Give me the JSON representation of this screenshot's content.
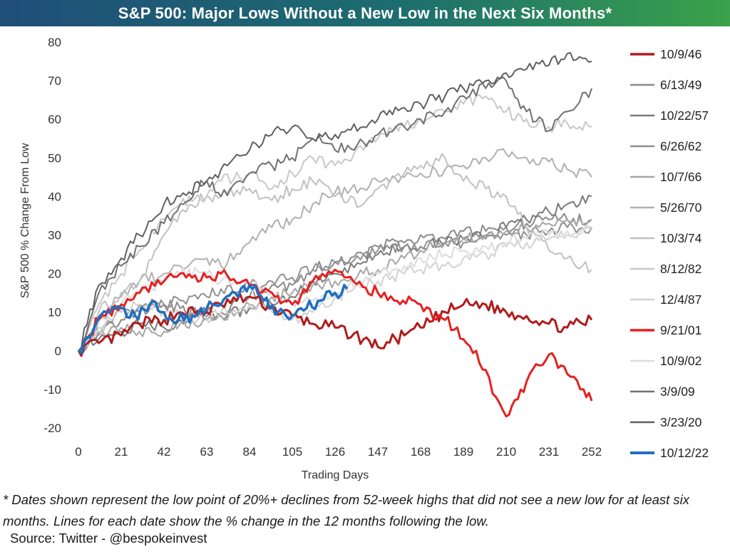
{
  "title": "S&P 500: Major Lows Without a New Low in the Next Six Months*",
  "footnote": "* Dates shown represent the low point of 20%+ declines from 52-week highs that did not see a new low for at least six months. Lines for each date show the % change in the 12 months following the low.",
  "source": "Source: Twitter - @bespokeinvest",
  "chart_data": {
    "type": "line",
    "xlabel": "Trading Days",
    "ylabel": "S&P 500 % Change From Low",
    "xlim": [
      0,
      252
    ],
    "ylim": [
      -20,
      80
    ],
    "x_ticks": [
      0,
      21,
      42,
      63,
      84,
      105,
      126,
      147,
      168,
      189,
      210,
      231,
      252
    ],
    "y_ticks": [
      -20,
      -10,
      0,
      10,
      20,
      30,
      40,
      50,
      60,
      70,
      80
    ],
    "grid": false,
    "legend_position": "right",
    "series": [
      {
        "name": "10/9/46",
        "color": "#b01c1c",
        "width": 3,
        "x": [
          0,
          10,
          21,
          30,
          42,
          50,
          63,
          70,
          84,
          95,
          105,
          115,
          126,
          140,
          147,
          160,
          168,
          180,
          189,
          200,
          210,
          220,
          231,
          240,
          252
        ],
        "values": [
          0,
          2,
          4,
          7,
          8,
          10,
          10,
          12,
          14,
          11,
          9,
          7,
          6,
          3,
          1,
          4,
          6,
          10,
          12,
          12,
          10,
          9,
          7,
          6,
          8
        ]
      },
      {
        "name": "6/13/49",
        "color": "#8a8a8a",
        "width": 2,
        "x": [
          0,
          10,
          21,
          30,
          42,
          50,
          63,
          70,
          84,
          95,
          105,
          115,
          126,
          140,
          147,
          160,
          168,
          180,
          189,
          200,
          210,
          220,
          231,
          240,
          252
        ],
        "values": [
          0,
          5,
          8,
          10,
          12,
          11,
          9,
          10,
          14,
          17,
          17,
          21,
          23,
          25,
          27,
          28,
          30,
          29,
          31,
          31,
          32,
          33,
          34,
          34,
          34
        ]
      },
      {
        "name": "10/22/57",
        "color": "#7a7a7a",
        "width": 2,
        "x": [
          0,
          10,
          21,
          30,
          42,
          50,
          63,
          70,
          84,
          95,
          105,
          115,
          126,
          140,
          147,
          160,
          168,
          180,
          189,
          200,
          210,
          220,
          231,
          240,
          252
        ],
        "values": [
          0,
          3,
          5,
          7,
          6,
          8,
          10,
          9,
          11,
          12,
          14,
          18,
          20,
          23,
          25,
          27,
          27,
          28,
          29,
          30,
          32,
          34,
          36,
          38,
          40
        ]
      },
      {
        "name": "6/26/62",
        "color": "#909090",
        "width": 2,
        "x": [
          0,
          10,
          21,
          30,
          42,
          50,
          63,
          70,
          84,
          95,
          105,
          115,
          126,
          140,
          147,
          160,
          168,
          180,
          189,
          200,
          210,
          220,
          231,
          240,
          252
        ],
        "values": [
          0,
          6,
          10,
          12,
          12,
          13,
          14,
          16,
          17,
          18,
          19,
          21,
          23,
          25,
          26,
          27,
          27,
          28,
          28,
          29,
          30,
          30,
          31,
          32,
          32
        ]
      },
      {
        "name": "10/7/66",
        "color": "#a6a6a6",
        "width": 2,
        "x": [
          0,
          10,
          21,
          30,
          42,
          50,
          63,
          70,
          84,
          95,
          105,
          115,
          126,
          140,
          147,
          160,
          168,
          180,
          189,
          200,
          210,
          220,
          231,
          240,
          252
        ],
        "values": [
          0,
          4,
          6,
          5,
          5,
          7,
          8,
          9,
          12,
          14,
          15,
          17,
          18,
          20,
          21,
          24,
          26,
          28,
          29,
          30,
          31,
          32,
          33,
          34,
          34
        ]
      },
      {
        "name": "5/26/70",
        "color": "#b0b0b0",
        "width": 2,
        "x": [
          0,
          10,
          21,
          30,
          42,
          50,
          63,
          70,
          84,
          95,
          105,
          115,
          126,
          140,
          147,
          160,
          168,
          180,
          189,
          200,
          210,
          220,
          231,
          240,
          252
        ],
        "values": [
          0,
          8,
          14,
          18,
          20,
          22,
          24,
          22,
          28,
          32,
          34,
          38,
          41,
          42,
          44,
          45,
          46,
          47,
          48,
          50,
          51,
          50,
          49,
          47,
          45
        ]
      },
      {
        "name": "10/3/74",
        "color": "#c0c0c0",
        "width": 2,
        "x": [
          0,
          10,
          21,
          30,
          42,
          50,
          63,
          70,
          84,
          95,
          105,
          115,
          126,
          140,
          147,
          160,
          168,
          180,
          189,
          200,
          210,
          220,
          231,
          240,
          252
        ],
        "values": [
          0,
          10,
          15,
          18,
          30,
          36,
          40,
          40,
          42,
          39,
          42,
          44,
          40,
          38,
          42,
          46,
          48,
          50,
          44,
          42,
          40,
          32,
          26,
          24,
          21
        ]
      },
      {
        "name": "8/12/82",
        "color": "#c8c8c8",
        "width": 2,
        "x": [
          0,
          10,
          21,
          30,
          42,
          50,
          63,
          70,
          84,
          95,
          105,
          115,
          126,
          140,
          147,
          160,
          168,
          180,
          189,
          200,
          210,
          220,
          231,
          240,
          252
        ],
        "values": [
          0,
          12,
          20,
          26,
          34,
          38,
          40,
          44,
          46,
          42,
          46,
          50,
          48,
          52,
          55,
          58,
          60,
          62,
          64,
          66,
          62,
          60,
          58,
          59,
          58
        ]
      },
      {
        "name": "12/4/87",
        "color": "#d2d2d2",
        "width": 2,
        "x": [
          0,
          10,
          21,
          30,
          42,
          50,
          63,
          70,
          84,
          95,
          105,
          115,
          126,
          140,
          147,
          160,
          168,
          180,
          189,
          200,
          210,
          220,
          231,
          240,
          252
        ],
        "values": [
          0,
          5,
          10,
          12,
          10,
          9,
          8,
          10,
          12,
          10,
          8,
          10,
          14,
          17,
          18,
          20,
          21,
          22,
          24,
          25,
          27,
          28,
          29,
          30,
          31
        ]
      },
      {
        "name": "9/21/01",
        "color": "#e62020",
        "width": 3,
        "x": [
          0,
          10,
          21,
          30,
          42,
          50,
          63,
          70,
          84,
          95,
          105,
          115,
          126,
          135,
          147,
          155,
          168,
          180,
          189,
          200,
          205,
          210,
          220,
          231,
          240,
          248,
          252
        ],
        "values": [
          0,
          8,
          12,
          15,
          18,
          20,
          19,
          20,
          17,
          15,
          12,
          18,
          21,
          18,
          15,
          13,
          12,
          8,
          3,
          -5,
          -12,
          -17,
          -8,
          -1,
          -6,
          -10,
          -13
        ]
      },
      {
        "name": "10/9/02",
        "color": "#dcdcdc",
        "width": 2,
        "x": [
          0,
          10,
          21,
          30,
          42,
          50,
          63,
          70,
          84,
          95,
          105,
          115,
          126,
          140,
          147,
          160,
          168,
          180,
          189,
          200,
          210,
          220,
          231,
          240,
          252
        ],
        "values": [
          0,
          6,
          12,
          15,
          18,
          20,
          20,
          18,
          17,
          15,
          12,
          13,
          15,
          18,
          20,
          22,
          24,
          25,
          26,
          27,
          28,
          29,
          30,
          31,
          32
        ]
      },
      {
        "name": "3/9/09",
        "color": "#707070",
        "width": 2,
        "x": [
          0,
          10,
          21,
          30,
          42,
          50,
          63,
          70,
          84,
          95,
          105,
          115,
          126,
          140,
          147,
          160,
          168,
          180,
          189,
          200,
          210,
          220,
          231,
          240,
          252
        ],
        "values": [
          0,
          15,
          22,
          27,
          33,
          38,
          44,
          40,
          46,
          48,
          50,
          55,
          52,
          54,
          56,
          58,
          60,
          62,
          66,
          68,
          70,
          62,
          57,
          62,
          68
        ]
      },
      {
        "name": "3/23/20",
        "color": "#606060",
        "width": 2,
        "x": [
          0,
          10,
          21,
          30,
          42,
          50,
          63,
          70,
          84,
          95,
          105,
          115,
          126,
          140,
          147,
          160,
          168,
          180,
          189,
          200,
          210,
          220,
          231,
          240,
          252
        ],
        "values": [
          0,
          17,
          24,
          30,
          38,
          40,
          44,
          47,
          52,
          56,
          58,
          55,
          56,
          58,
          60,
          63,
          64,
          66,
          68,
          70,
          72,
          73,
          74,
          77,
          75
        ]
      },
      {
        "name": "10/12/22",
        "color": "#1f6fc0",
        "width": 3.5,
        "x": [
          0,
          7,
          14,
          21,
          28,
          35,
          42,
          49,
          56,
          63,
          70,
          77,
          84,
          91,
          98,
          105,
          112,
          119,
          126,
          132
        ],
        "values": [
          0,
          5,
          10,
          11,
          9,
          12,
          10,
          8,
          9,
          11,
          12,
          15,
          17,
          13,
          10,
          9,
          11,
          13,
          15,
          16
        ]
      }
    ]
  }
}
